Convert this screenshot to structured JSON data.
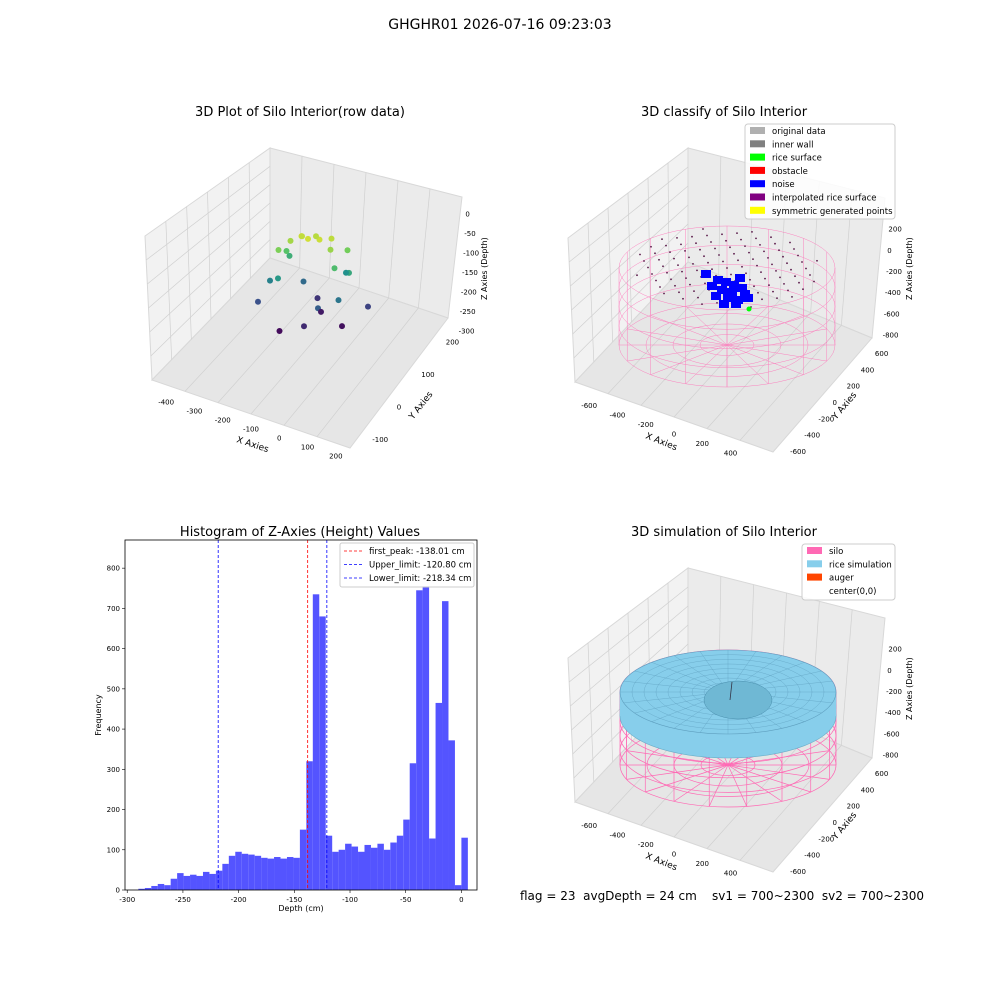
{
  "page": {
    "title": "GHGHR01 2026-07-16 09:23:03"
  },
  "chart_data": [
    {
      "type": "scatter",
      "title": "3D Plot of Silo Interior(row data)",
      "xlabel": "X Axies",
      "ylabel": "Y Axies",
      "zlabel": "Z Axies (Depth)",
      "x_ticks": [
        "-400",
        "-300",
        "-200",
        "-100",
        "0",
        "100",
        "200"
      ],
      "y_ticks": [
        "-100",
        "0",
        "100",
        "200"
      ],
      "z_ticks": [
        "0",
        "-50",
        "-100",
        "-150",
        "-200",
        "-250",
        "-300"
      ],
      "xlim": [
        -420,
        230
      ],
      "ylim": [
        -150,
        260
      ],
      "zlim": [
        -310,
        10
      ],
      "colormap": "viridis",
      "points": [
        {
          "x": -30,
          "y": 20,
          "z": -10
        },
        {
          "x": -10,
          "y": 10,
          "z": -12
        },
        {
          "x": 10,
          "y": 20,
          "z": -15
        },
        {
          "x": -40,
          "y": 40,
          "z": -20
        },
        {
          "x": -20,
          "y": 60,
          "z": -25
        },
        {
          "x": 20,
          "y": 50,
          "z": -22
        },
        {
          "x": -60,
          "y": 30,
          "z": -35
        },
        {
          "x": 40,
          "y": 10,
          "z": -40
        },
        {
          "x": -70,
          "y": 0,
          "z": -55
        },
        {
          "x": 50,
          "y": 60,
          "z": -60
        },
        {
          "x": -80,
          "y": 50,
          "z": -80
        },
        {
          "x": 60,
          "y": -10,
          "z": -90
        },
        {
          "x": -90,
          "y": 80,
          "z": -110
        },
        {
          "x": 70,
          "y": 30,
          "z": -120
        },
        {
          "x": -60,
          "y": -20,
          "z": -140
        },
        {
          "x": 30,
          "y": 90,
          "z": -150
        },
        {
          "x": -100,
          "y": 20,
          "z": -170
        },
        {
          "x": 80,
          "y": -30,
          "z": -185
        },
        {
          "x": -70,
          "y": 100,
          "z": -200
        },
        {
          "x": 40,
          "y": -40,
          "z": -215
        },
        {
          "x": -110,
          "y": -10,
          "z": -230
        },
        {
          "x": 90,
          "y": 70,
          "z": -245
        },
        {
          "x": -50,
          "y": 120,
          "z": -260
        },
        {
          "x": 20,
          "y": -60,
          "z": -270
        },
        {
          "x": -20,
          "y": 80,
          "z": -285
        },
        {
          "x": 60,
          "y": 20,
          "z": -295
        },
        {
          "x": -40,
          "y": -50,
          "z": -300
        }
      ]
    },
    {
      "type": "scatter",
      "title": "3D classify of Silo Interior",
      "xlabel": "X Axies",
      "ylabel": "Y Axies",
      "zlabel": "Z Axies (Depth)",
      "x_ticks": [
        "-600",
        "-400",
        "-200",
        "0",
        "200",
        "400",
        "600"
      ],
      "y_ticks": [
        "-600",
        "-400",
        "-200",
        "0",
        "200",
        "400",
        "600"
      ],
      "z_ticks": [
        "200",
        "0",
        "-200",
        "-400",
        "-600",
        "-800"
      ],
      "xlim": [
        -700,
        700
      ],
      "ylim": [
        -700,
        700
      ],
      "zlim": [
        -900,
        300
      ],
      "legend_position": "upper right",
      "legend": [
        {
          "label": "original data",
          "color": "#b0b0b0"
        },
        {
          "label": "inner wall",
          "color": "#808080"
        },
        {
          "label": "rice surface",
          "color": "#00ff00"
        },
        {
          "label": "obstacle",
          "color": "#ff0000"
        },
        {
          "label": "noise",
          "color": "#0000ff"
        },
        {
          "label": "interpolated rice surface",
          "color": "#800080"
        },
        {
          "label": "symmetric generated points",
          "color": "#ffff00"
        }
      ],
      "silo_color": "#ff69b4"
    },
    {
      "type": "bar",
      "title": "Histogram of Z-Axies (Height) Values",
      "xlabel": "Depth (cm)",
      "ylabel": "Frequency",
      "xlim": [
        -302,
        14
      ],
      "ylim": [
        0,
        870
      ],
      "x_ticks": [
        -300,
        -250,
        -200,
        -150,
        -100,
        -50,
        0
      ],
      "y_ticks": [
        0,
        100,
        200,
        300,
        400,
        500,
        600,
        700,
        800
      ],
      "bar_color": "#4b4bff",
      "bins_start": -290,
      "bin_width": 5.8,
      "values": [
        3,
        5,
        10,
        15,
        12,
        28,
        42,
        35,
        38,
        35,
        45,
        40,
        48,
        65,
        85,
        95,
        90,
        88,
        85,
        80,
        78,
        82,
        78,
        82,
        80,
        150,
        320,
        735,
        680,
        135,
        95,
        100,
        115,
        108,
        95,
        112,
        105,
        115,
        100,
        118,
        135,
        175,
        315,
        745,
        755,
        128,
        465,
        718,
        372,
        12,
        130
      ],
      "legend_position": "upper right",
      "reference_lines": [
        {
          "label": "first_peak: -138.01 cm",
          "x": -138.01,
          "color": "#ff0000"
        },
        {
          "label": "Upper_limit: -120.80 cm",
          "x": -120.8,
          "color": "#0000ff"
        },
        {
          "label": "Lower_limit: -218.34 cm",
          "x": -218.34,
          "color": "#0000ff"
        }
      ]
    },
    {
      "type": "area",
      "title": "3D simulation of Silo Interior",
      "xlabel": "X Axies",
      "ylabel": "Y Axies",
      "zlabel": "Z Axies (Depth)",
      "x_ticks": [
        "-600",
        "-400",
        "-200",
        "0",
        "200",
        "400",
        "600"
      ],
      "y_ticks": [
        "-600",
        "-400",
        "-200",
        "0",
        "200",
        "400",
        "600"
      ],
      "z_ticks": [
        "200",
        "0",
        "-200",
        "-400",
        "-600",
        "-800"
      ],
      "xlim": [
        -700,
        700
      ],
      "ylim": [
        -700,
        700
      ],
      "zlim": [
        -900,
        300
      ],
      "legend_position": "upper right",
      "legend": [
        {
          "label": "silo",
          "color": "#ff69b4"
        },
        {
          "label": "rice simulation",
          "color": "#87ceeb"
        },
        {
          "label": "auger",
          "color": "#ff4500"
        },
        {
          "label": "center(0,0)",
          "color": "#ffffff"
        }
      ]
    }
  ],
  "footer": {
    "status_text": "flag = 23  avgDepth = 24 cm    sv1 = 700~2300  sv2 = 700~2300"
  }
}
